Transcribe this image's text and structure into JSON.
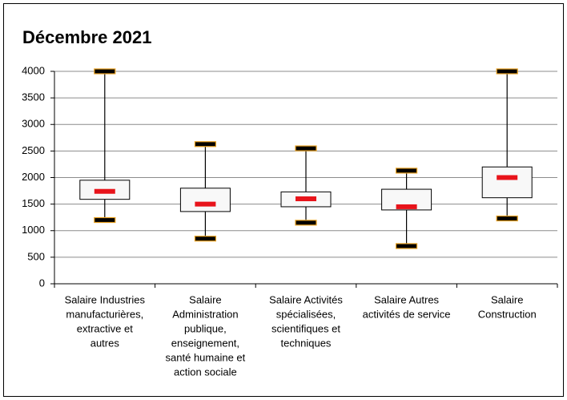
{
  "chart_data": {
    "type": "box",
    "title": "Décembre 2021",
    "categories": [
      [
        "Salaire Industries",
        "manufacturières,",
        "extractive et",
        "autres"
      ],
      [
        "Salaire",
        "Administration",
        "publique,",
        "enseignement,",
        "santé humaine et",
        "action sociale"
      ],
      [
        "Salaire Activités",
        "spécialisées,",
        "scientifiques et",
        "techniques"
      ],
      [
        "Salaire Autres",
        "activités de service"
      ],
      [
        "Salaire",
        "Construction"
      ]
    ],
    "min": [
      1200,
      850,
      1150,
      710,
      1230
    ],
    "q1": [
      1590,
      1360,
      1450,
      1390,
      1620
    ],
    "median": [
      1740,
      1500,
      1600,
      1450,
      2000
    ],
    "q3": [
      1950,
      1800,
      1730,
      1780,
      2200
    ],
    "max": [
      4000,
      2630,
      2550,
      2130,
      4000
    ],
    "box_color": "#f8f8f8",
    "median_color": "#e8141b",
    "whisker_color": "#000000",
    "whisker_edge": "#e8a020",
    "ylim": [
      0,
      4000
    ],
    "yticks": [
      0,
      500,
      1000,
      1500,
      2000,
      2500,
      3000,
      3500,
      4000
    ],
    "grid": true
  }
}
